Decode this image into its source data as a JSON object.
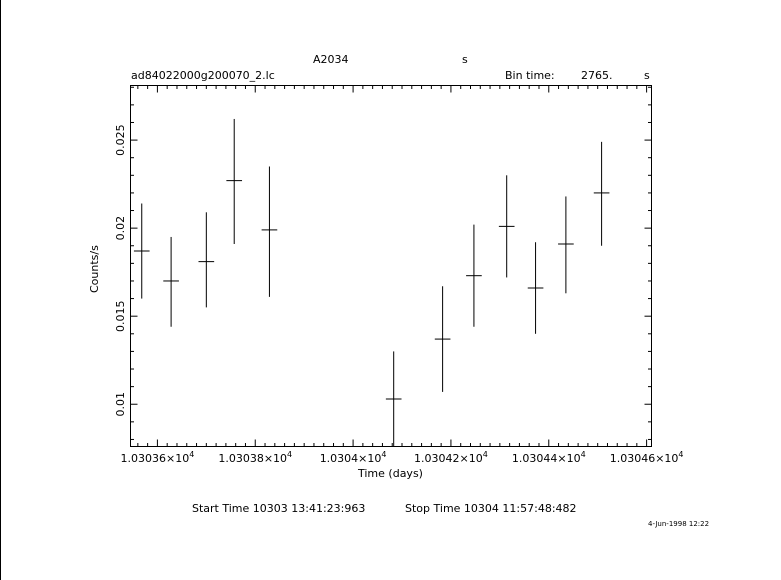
{
  "chart_data": {
    "type": "scatter",
    "title": "A2034",
    "title_suffix": "s",
    "filename": "ad84022000g200070_2.lc",
    "bin_time_label": "Bin time:",
    "bin_time_value": "2765.",
    "bin_time_unit": "s",
    "xlabel": "Time (days)",
    "ylabel": "Counts/s",
    "xlim": [
      10303.545,
      10304.61
    ],
    "ylim": [
      0.0076,
      0.0281
    ],
    "x_ticks": [
      {
        "value": 10303.6,
        "label": "1.03036×10",
        "exp": "4"
      },
      {
        "value": 10303.8,
        "label": "1.03038×10",
        "exp": "4"
      },
      {
        "value": 10304.0,
        "label": "1.0304×10",
        "exp": "4"
      },
      {
        "value": 10304.2,
        "label": "1.03042×10",
        "exp": "4"
      },
      {
        "value": 10304.4,
        "label": "1.03044×10",
        "exp": "4"
      },
      {
        "value": 10304.6,
        "label": "1.03046×10",
        "exp": "4"
      }
    ],
    "y_ticks": [
      {
        "value": 0.01,
        "label": "0.01"
      },
      {
        "value": 0.015,
        "label": "0.015"
      },
      {
        "value": 0.02,
        "label": "0.02"
      },
      {
        "value": 0.025,
        "label": "0.025"
      }
    ],
    "grid": false,
    "points": [
      {
        "x": 10303.568,
        "y": 0.0187,
        "xerr": 0.016,
        "ylo": 0.016,
        "yhi": 0.0214
      },
      {
        "x": 10303.628,
        "y": 0.017,
        "xerr": 0.016,
        "ylo": 0.0144,
        "yhi": 0.0195
      },
      {
        "x": 10303.7,
        "y": 0.0181,
        "xerr": 0.016,
        "ylo": 0.0155,
        "yhi": 0.0209
      },
      {
        "x": 10303.757,
        "y": 0.0227,
        "xerr": 0.016,
        "ylo": 0.0191,
        "yhi": 0.0262
      },
      {
        "x": 10303.829,
        "y": 0.0199,
        "xerr": 0.016,
        "ylo": 0.0161,
        "yhi": 0.0235
      },
      {
        "x": 10304.083,
        "y": 0.0103,
        "xerr": 0.016,
        "ylo": 0.0076,
        "yhi": 0.013
      },
      {
        "x": 10304.183,
        "y": 0.0137,
        "xerr": 0.016,
        "ylo": 0.0107,
        "yhi": 0.0167
      },
      {
        "x": 10304.247,
        "y": 0.0173,
        "xerr": 0.016,
        "ylo": 0.0144,
        "yhi": 0.0202
      },
      {
        "x": 10304.314,
        "y": 0.0201,
        "xerr": 0.016,
        "ylo": 0.0172,
        "yhi": 0.023
      },
      {
        "x": 10304.373,
        "y": 0.0166,
        "xerr": 0.016,
        "ylo": 0.014,
        "yhi": 0.0192
      },
      {
        "x": 10304.435,
        "y": 0.0191,
        "xerr": 0.016,
        "ylo": 0.0163,
        "yhi": 0.0218
      },
      {
        "x": 10304.508,
        "y": 0.022,
        "xerr": 0.016,
        "ylo": 0.019,
        "yhi": 0.0249
      }
    ]
  },
  "footer": {
    "start_time": "Start Time 10303 13:41:23:963",
    "stop_time": "Stop Time 10304 11:57:48:482",
    "date_stamp": "4-Jun-1998 12:22"
  }
}
